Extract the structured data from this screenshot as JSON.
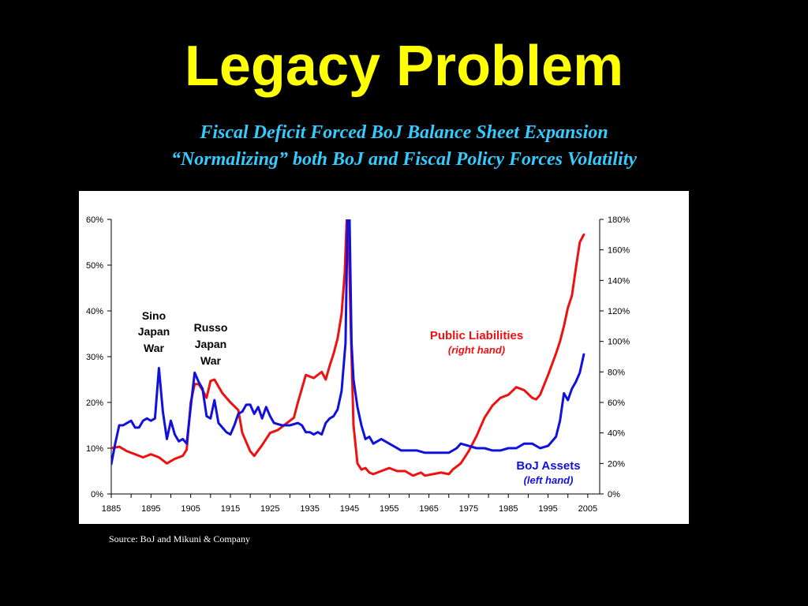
{
  "slide": {
    "title": "Legacy Problem",
    "subtitle_1": "Fiscal Deficit Forced BoJ Balance Sheet Expansion",
    "subtitle_2": "“Normalizing” both BoJ and Fiscal Policy Forces Volatility",
    "source": "Source: BoJ and Mikuni & Company"
  },
  "colors": {
    "background": "#000000",
    "title": "#ffff00",
    "subtitle": "#33ccff",
    "liabilities": "#ee1111",
    "assets": "#1111dd"
  },
  "chart_data": {
    "type": "line",
    "x_ticks": [
      "1885",
      "1895",
      "1905",
      "1915",
      "1925",
      "1935",
      "1945",
      "1955",
      "1965",
      "1975",
      "1985",
      "1995",
      "2005"
    ],
    "xlim": [
      1885,
      2008
    ],
    "left_axis": {
      "ylim": [
        0,
        0.6
      ],
      "ticks": [
        "0%",
        "10%",
        "20%",
        "30%",
        "40%",
        "50%",
        "60%"
      ]
    },
    "right_axis": {
      "ylim": [
        0,
        1.8
      ],
      "ticks": [
        "0%",
        "20%",
        "40%",
        "60%",
        "80%",
        "100%",
        "120%",
        "140%",
        "160%",
        "180%"
      ]
    },
    "annotations": [
      {
        "lines": [
          "Sino",
          "Japan",
          "War"
        ]
      },
      {
        "lines": [
          "Russo",
          "Japan",
          "War"
        ]
      }
    ],
    "series": [
      {
        "name": "Public Liabilities",
        "note": "(right hand)",
        "axis": "right",
        "color": "#ee1111",
        "points": [
          [
            1885,
            0.3
          ],
          [
            1887,
            0.31
          ],
          [
            1889,
            0.28
          ],
          [
            1891,
            0.26
          ],
          [
            1893,
            0.24
          ],
          [
            1895,
            0.26
          ],
          [
            1897,
            0.24
          ],
          [
            1899,
            0.2
          ],
          [
            1901,
            0.23
          ],
          [
            1903,
            0.25
          ],
          [
            1904,
            0.29
          ],
          [
            1905,
            0.6
          ],
          [
            1906,
            0.72
          ],
          [
            1907,
            0.72
          ],
          [
            1908,
            0.68
          ],
          [
            1909,
            0.63
          ],
          [
            1910,
            0.74
          ],
          [
            1911,
            0.75
          ],
          [
            1913,
            0.66
          ],
          [
            1915,
            0.6
          ],
          [
            1917,
            0.55
          ],
          [
            1918,
            0.4
          ],
          [
            1920,
            0.28
          ],
          [
            1921,
            0.25
          ],
          [
            1923,
            0.32
          ],
          [
            1925,
            0.4
          ],
          [
            1927,
            0.42
          ],
          [
            1929,
            0.46
          ],
          [
            1931,
            0.5
          ],
          [
            1932,
            0.6
          ],
          [
            1934,
            0.78
          ],
          [
            1936,
            0.76
          ],
          [
            1938,
            0.8
          ],
          [
            1939,
            0.75
          ],
          [
            1940,
            0.84
          ],
          [
            1941,
            0.92
          ],
          [
            1942,
            1.02
          ],
          [
            1943,
            1.18
          ],
          [
            1943.8,
            1.45
          ],
          [
            1944.3,
            1.8
          ]
        ]
      },
      {
        "name": "Public Liabilities",
        "axis": "right",
        "color": "#ee1111",
        "points": [
          [
            1944.7,
            1.8
          ],
          [
            1945.3,
            1.1
          ],
          [
            1946,
            0.45
          ],
          [
            1947,
            0.2
          ],
          [
            1948,
            0.16
          ],
          [
            1949,
            0.17
          ],
          [
            1950,
            0.14
          ],
          [
            1951,
            0.13
          ],
          [
            1953,
            0.15
          ],
          [
            1955,
            0.17
          ],
          [
            1957,
            0.15
          ],
          [
            1959,
            0.15
          ],
          [
            1961,
            0.12
          ],
          [
            1963,
            0.14
          ],
          [
            1964,
            0.12
          ],
          [
            1966,
            0.13
          ],
          [
            1968,
            0.14
          ],
          [
            1970,
            0.13
          ],
          [
            1971,
            0.16
          ],
          [
            1973,
            0.2
          ],
          [
            1975,
            0.28
          ],
          [
            1977,
            0.38
          ],
          [
            1979,
            0.5
          ],
          [
            1981,
            0.58
          ],
          [
            1983,
            0.63
          ],
          [
            1985,
            0.65
          ],
          [
            1987,
            0.7
          ],
          [
            1989,
            0.68
          ],
          [
            1991,
            0.63
          ],
          [
            1992,
            0.62
          ],
          [
            1993,
            0.65
          ],
          [
            1995,
            0.78
          ],
          [
            1996,
            0.85
          ],
          [
            1997,
            0.92
          ],
          [
            1998,
            1.0
          ],
          [
            1999,
            1.1
          ],
          [
            2000,
            1.22
          ],
          [
            2001,
            1.3
          ],
          [
            2002,
            1.48
          ],
          [
            2003,
            1.65
          ],
          [
            2004,
            1.7
          ]
        ]
      },
      {
        "name": "BoJ Assets",
        "note": "(left hand)",
        "axis": "left",
        "color": "#1111dd",
        "points": [
          [
            1885,
            0.065
          ],
          [
            1886,
            0.11
          ],
          [
            1887,
            0.15
          ],
          [
            1888,
            0.15
          ],
          [
            1889,
            0.155
          ],
          [
            1890,
            0.16
          ],
          [
            1891,
            0.145
          ],
          [
            1892,
            0.145
          ],
          [
            1893,
            0.16
          ],
          [
            1894,
            0.165
          ],
          [
            1895,
            0.16
          ],
          [
            1896,
            0.165
          ],
          [
            1897,
            0.275
          ],
          [
            1898,
            0.18
          ],
          [
            1899,
            0.12
          ],
          [
            1900,
            0.16
          ],
          [
            1901,
            0.13
          ],
          [
            1902,
            0.115
          ],
          [
            1903,
            0.12
          ],
          [
            1904,
            0.11
          ],
          [
            1905,
            0.19
          ],
          [
            1906,
            0.265
          ],
          [
            1907,
            0.245
          ],
          [
            1908,
            0.23
          ],
          [
            1909,
            0.17
          ],
          [
            1910,
            0.165
          ],
          [
            1911,
            0.205
          ],
          [
            1912,
            0.155
          ],
          [
            1913,
            0.145
          ],
          [
            1914,
            0.135
          ],
          [
            1915,
            0.13
          ],
          [
            1916,
            0.15
          ],
          [
            1917,
            0.175
          ],
          [
            1918,
            0.18
          ],
          [
            1919,
            0.195
          ],
          [
            1920,
            0.195
          ],
          [
            1921,
            0.175
          ],
          [
            1922,
            0.19
          ],
          [
            1923,
            0.165
          ],
          [
            1924,
            0.19
          ],
          [
            1925,
            0.17
          ],
          [
            1926,
            0.155
          ],
          [
            1928,
            0.15
          ],
          [
            1930,
            0.15
          ],
          [
            1932,
            0.155
          ],
          [
            1933,
            0.15
          ],
          [
            1934,
            0.135
          ],
          [
            1935,
            0.135
          ],
          [
            1936,
            0.13
          ],
          [
            1937,
            0.135
          ],
          [
            1938,
            0.13
          ],
          [
            1939,
            0.155
          ],
          [
            1940,
            0.165
          ],
          [
            1941,
            0.17
          ],
          [
            1942,
            0.185
          ],
          [
            1943,
            0.225
          ],
          [
            1944,
            0.33
          ],
          [
            1944.5,
            0.6
          ]
        ]
      },
      {
        "name": "BoJ Assets",
        "axis": "left",
        "color": "#1111dd",
        "points": [
          [
            1945,
            0.6
          ],
          [
            1945.5,
            0.33
          ],
          [
            1946,
            0.25
          ],
          [
            1947,
            0.19
          ],
          [
            1948,
            0.15
          ],
          [
            1949,
            0.12
          ],
          [
            1950,
            0.125
          ],
          [
            1951,
            0.11
          ],
          [
            1952,
            0.115
          ],
          [
            1953,
            0.12
          ],
          [
            1954,
            0.115
          ],
          [
            1956,
            0.105
          ],
          [
            1958,
            0.095
          ],
          [
            1960,
            0.095
          ],
          [
            1962,
            0.095
          ],
          [
            1964,
            0.09
          ],
          [
            1966,
            0.09
          ],
          [
            1968,
            0.09
          ],
          [
            1970,
            0.09
          ],
          [
            1972,
            0.1
          ],
          [
            1973,
            0.11
          ],
          [
            1975,
            0.105
          ],
          [
            1977,
            0.1
          ],
          [
            1979,
            0.1
          ],
          [
            1981,
            0.095
          ],
          [
            1983,
            0.095
          ],
          [
            1985,
            0.1
          ],
          [
            1987,
            0.1
          ],
          [
            1989,
            0.11
          ],
          [
            1991,
            0.11
          ],
          [
            1993,
            0.1
          ],
          [
            1995,
            0.105
          ],
          [
            1997,
            0.125
          ],
          [
            1998,
            0.16
          ],
          [
            1999,
            0.22
          ],
          [
            2000,
            0.205
          ],
          [
            2001,
            0.23
          ],
          [
            2002,
            0.245
          ],
          [
            2003,
            0.265
          ],
          [
            2004,
            0.305
          ]
        ]
      }
    ]
  }
}
